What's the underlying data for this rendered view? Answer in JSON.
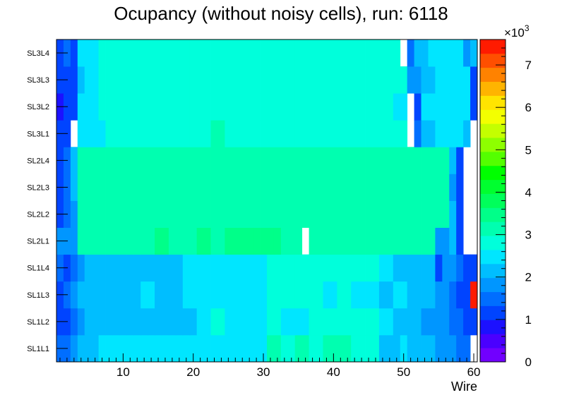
{
  "chart_data": {
    "type": "heatmap",
    "title": "Ocupancy (without noisy cells), run: 6118",
    "xlabel": "Wire",
    "ylabel": "",
    "x_range": [
      0.5,
      60.5
    ],
    "x_ticks": [
      10,
      20,
      30,
      40,
      50,
      60
    ],
    "y_categories": [
      "SL1L1",
      "SL1L2",
      "SL1L3",
      "SL1L4",
      "SL2L1",
      "SL2L2",
      "SL2L3",
      "SL2L4",
      "SL3L1",
      "SL3L2",
      "SL3L3",
      "SL3L4"
    ],
    "z_range": [
      0,
      7600
    ],
    "colorbar_ticks": [
      0,
      1,
      2,
      3,
      4,
      5,
      6,
      7
    ],
    "colorbar_exponent_label": "×10",
    "colorbar_exponent": "3",
    "z_values": [
      [
        1500,
        1500,
        1900,
        2300,
        2300,
        2300,
        2500,
        2500,
        2500,
        2500,
        2500,
        2500,
        2500,
        2500,
        2500,
        2500,
        2500,
        2500,
        2500,
        2500,
        2500,
        2500,
        2500,
        2500,
        2500,
        2500,
        2500,
        2500,
        2500,
        2500,
        3000,
        3000,
        2800,
        2800,
        3000,
        3000,
        2800,
        2800,
        3000,
        3000,
        3000,
        3000,
        2800,
        2800,
        2800,
        2800,
        2100,
        2100,
        2300,
        2500,
        2100,
        2100,
        2100,
        2100,
        1800,
        1800,
        1800,
        1500,
        1500,
        0
      ],
      [
        1300,
        1300,
        1600,
        1900,
        2300,
        2300,
        2300,
        2300,
        2300,
        2300,
        2300,
        2300,
        2300,
        2300,
        2300,
        2300,
        2300,
        2300,
        2300,
        2300,
        2500,
        2500,
        2800,
        2800,
        2500,
        2500,
        2500,
        2500,
        2500,
        2500,
        2800,
        2800,
        2500,
        2500,
        2500,
        2500,
        2800,
        2800,
        2800,
        2800,
        2800,
        2800,
        2800,
        2800,
        2800,
        2800,
        2500,
        2500,
        2300,
        2300,
        2100,
        2100,
        1800,
        1800,
        1800,
        1800,
        1500,
        1500,
        1300,
        1300
      ],
      [
        1300,
        1600,
        1900,
        2100,
        2300,
        2300,
        2300,
        2300,
        2300,
        2300,
        2300,
        2300,
        2500,
        2500,
        2300,
        2300,
        2300,
        2300,
        2500,
        2500,
        2500,
        2500,
        2500,
        2500,
        2500,
        2500,
        2500,
        2500,
        2500,
        2500,
        2800,
        2800,
        2800,
        2800,
        2800,
        2800,
        2800,
        2800,
        2500,
        2500,
        2800,
        2800,
        2500,
        2500,
        2500,
        2500,
        2300,
        2300,
        2500,
        2500,
        2300,
        2300,
        2100,
        2100,
        1800,
        1800,
        1500,
        1300,
        1300,
        7400
      ],
      [
        1500,
        1300,
        1600,
        1900,
        2100,
        2300,
        2300,
        2300,
        2300,
        2300,
        2300,
        2300,
        2300,
        2300,
        2300,
        2300,
        2300,
        2300,
        2500,
        2500,
        2500,
        2500,
        2500,
        2500,
        2500,
        2500,
        2500,
        2500,
        2500,
        2500,
        2800,
        2800,
        2800,
        2800,
        2800,
        2800,
        2800,
        2800,
        2800,
        2800,
        2800,
        2800,
        2800,
        2800,
        2800,
        2800,
        2500,
        2500,
        2300,
        2300,
        2300,
        2300,
        2100,
        2100,
        1000,
        1800,
        1800,
        1500,
        1300,
        1300
      ],
      [
        1800,
        1800,
        1900,
        3000,
        3000,
        3300,
        3300,
        3300,
        3300,
        3300,
        3300,
        3300,
        3300,
        3300,
        3600,
        3600,
        3300,
        3300,
        3300,
        3300,
        3600,
        3600,
        3300,
        3300,
        3600,
        3600,
        3600,
        3600,
        3600,
        3600,
        3600,
        3600,
        3300,
        3300,
        3300,
        0,
        3300,
        3300,
        3300,
        3300,
        3300,
        3300,
        3300,
        3300,
        3300,
        3300,
        3300,
        3300,
        3300,
        3300,
        3300,
        3300,
        3300,
        3300,
        1800,
        1800,
        2300,
        1300,
        0,
        0
      ],
      [
        1300,
        1600,
        1900,
        3000,
        3000,
        3000,
        3300,
        3300,
        3300,
        3300,
        3300,
        3300,
        3300,
        3300,
        3300,
        3300,
        3300,
        3300,
        3300,
        3300,
        3300,
        3300,
        3300,
        3300,
        3300,
        3300,
        3300,
        3300,
        3300,
        3300,
        3300,
        3300,
        3300,
        3300,
        3300,
        3300,
        3300,
        3300,
        3300,
        3300,
        3300,
        3300,
        3300,
        3300,
        3300,
        3300,
        3300,
        3300,
        3300,
        3300,
        3300,
        3300,
        3300,
        3300,
        3000,
        3000,
        2100,
        1300,
        0,
        0
      ],
      [
        1300,
        1600,
        2000,
        3000,
        3000,
        3300,
        3300,
        3300,
        3300,
        3300,
        3300,
        3300,
        3300,
        3300,
        3300,
        3300,
        3300,
        3300,
        3300,
        3300,
        3300,
        3300,
        3300,
        3300,
        3300,
        3300,
        3300,
        3300,
        3300,
        3300,
        3300,
        3300,
        3300,
        3300,
        3300,
        3000,
        3000,
        3000,
        3000,
        3000,
        3000,
        3000,
        3000,
        3000,
        3000,
        3000,
        3000,
        3000,
        3000,
        3000,
        3000,
        3000,
        3000,
        3000,
        3000,
        3000,
        1800,
        1300,
        0,
        0
      ],
      [
        1300,
        1600,
        2000,
        3300,
        3300,
        3300,
        3300,
        3300,
        3300,
        3300,
        3300,
        3300,
        3300,
        3300,
        3300,
        3300,
        3300,
        3300,
        3300,
        3300,
        3300,
        3300,
        3300,
        3300,
        3300,
        3300,
        3300,
        3300,
        3300,
        3300,
        3300,
        3300,
        3300,
        3300,
        3300,
        3300,
        3300,
        3300,
        3300,
        3300,
        3300,
        3300,
        3300,
        3300,
        3300,
        3300,
        3300,
        3300,
        3300,
        3300,
        3300,
        3300,
        3300,
        3300,
        3000,
        3000,
        2100,
        1300,
        0,
        0
      ],
      [
        1000,
        1000,
        0,
        2500,
        2500,
        2500,
        2500,
        2800,
        2800,
        2800,
        2800,
        2800,
        2800,
        2800,
        2800,
        2800,
        2800,
        2800,
        2800,
        2800,
        2800,
        2800,
        3000,
        3000,
        2800,
        2800,
        2800,
        2800,
        2800,
        2800,
        2800,
        2800,
        2800,
        2800,
        2800,
        2800,
        2800,
        2800,
        2800,
        2800,
        2800,
        2800,
        2800,
        2800,
        2800,
        2800,
        2800,
        2800,
        2800,
        2800,
        0,
        1500,
        2100,
        2100,
        2500,
        2500,
        2500,
        2500,
        2300,
        0
      ],
      [
        700,
        1000,
        1300,
        2500,
        2500,
        2500,
        2800,
        2800,
        2800,
        2800,
        2800,
        2800,
        2800,
        2800,
        2800,
        2800,
        2800,
        2800,
        2800,
        2800,
        2800,
        2800,
        2800,
        2800,
        2800,
        2800,
        2800,
        2800,
        2800,
        2800,
        2800,
        2800,
        2800,
        2800,
        2800,
        2800,
        2800,
        2800,
        2800,
        2800,
        2800,
        2800,
        2800,
        2800,
        2800,
        2800,
        2800,
        2800,
        2500,
        2500,
        0,
        1300,
        2500,
        2500,
        2500,
        2500,
        2500,
        2500,
        2500,
        1300
      ],
      [
        1000,
        1000,
        1300,
        2100,
        2500,
        2500,
        2800,
        2800,
        2800,
        2800,
        2800,
        2800,
        2800,
        2800,
        2800,
        2800,
        2800,
        2800,
        2800,
        2800,
        2800,
        2800,
        2800,
        2800,
        2800,
        2800,
        2800,
        2800,
        2800,
        2800,
        2800,
        2800,
        2800,
        2800,
        2800,
        2800,
        2800,
        2800,
        2800,
        2800,
        2800,
        2800,
        2800,
        2800,
        2800,
        2800,
        2800,
        2800,
        2800,
        2800,
        1800,
        1800,
        2300,
        2300,
        2500,
        2500,
        2500,
        2500,
        2500,
        1300
      ],
      [
        1300,
        1600,
        1000,
        2500,
        2500,
        2500,
        2800,
        2800,
        2800,
        2800,
        2800,
        2800,
        2800,
        2800,
        2800,
        2800,
        2800,
        2800,
        2800,
        2800,
        2800,
        2800,
        2800,
        2800,
        2800,
        2800,
        2800,
        2800,
        2800,
        2800,
        2800,
        2800,
        2800,
        2800,
        2800,
        2800,
        2800,
        2800,
        2800,
        2800,
        2800,
        2800,
        2800,
        2800,
        2800,
        2800,
        2800,
        2800,
        2800,
        0,
        1500,
        2100,
        2100,
        2500,
        2500,
        2500,
        2500,
        2500,
        1800,
        2300
      ]
    ]
  },
  "colors": {
    "palette": [
      "#7100ff",
      "#4a00ff",
      "#1c11ff",
      "#0044ff",
      "#006eff",
      "#0096ff",
      "#00beff",
      "#00e6ff",
      "#00ffdb",
      "#00ffb0",
      "#00ff89",
      "#00ff5b",
      "#00ff2f",
      "#00ff00",
      "#54ff00",
      "#8eff00",
      "#c4ff00",
      "#f3ff00",
      "#ffe400",
      "#ffb400",
      "#ff8200",
      "#ff4f00",
      "#ff1b00"
    ]
  }
}
